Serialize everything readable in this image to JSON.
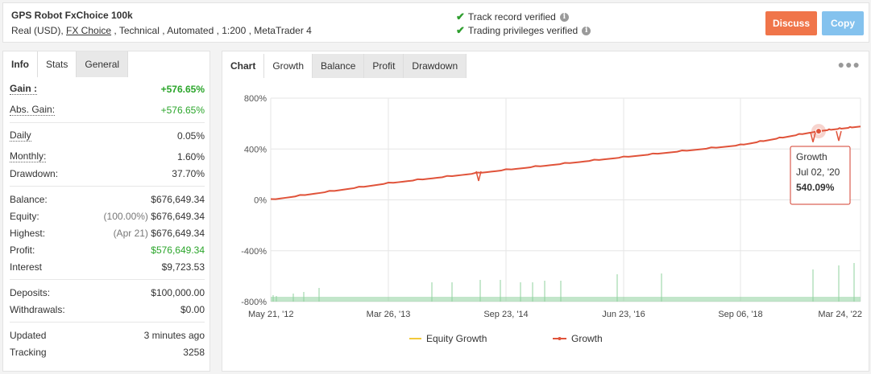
{
  "header": {
    "title": "GPS Robot FxChoice 100k",
    "sub_prefix": "Real (USD), ",
    "sub_broker": "FX Choice",
    "sub_suffix": " , Technical , Automated , 1:200 , MetaTrader 4",
    "verify_1": "Track record verified",
    "verify_2": "Trading privileges verified",
    "discuss_label": "Discuss",
    "copy_label": "Copy"
  },
  "left_tabs": [
    "Info",
    "Stats",
    "General"
  ],
  "stats": {
    "gain_label": "Gain :",
    "gain_value": "+576.65%",
    "abs_gain_label": "Abs. Gain:",
    "abs_gain_value": "+576.65%",
    "daily_label": "Daily",
    "daily_value": "0.05%",
    "monthly_label": "Monthly:",
    "monthly_value": "1.60%",
    "drawdown_label": "Drawdown:",
    "drawdown_value": "37.70%",
    "balance_label": "Balance:",
    "balance_value": "$676,649.34",
    "equity_label": "Equity:",
    "equity_note": "(100.00%)",
    "equity_value": "$676,649.34",
    "highest_label": "Highest:",
    "highest_note": "(Apr 21)",
    "highest_value": "$676,649.34",
    "profit_label": "Profit:",
    "profit_value": "$576,649.34",
    "interest_label": "Interest",
    "interest_value": "$9,723.53",
    "deposits_label": "Deposits:",
    "deposits_value": "$100,000.00",
    "withdrawals_label": "Withdrawals:",
    "withdrawals_value": "$0.00",
    "updated_label": "Updated",
    "updated_value": "3 minutes ago",
    "tracking_label": "Tracking",
    "tracking_value": "3258"
  },
  "chart_tabs": [
    "Chart",
    "Growth",
    "Balance",
    "Profit",
    "Drawdown"
  ],
  "colors": {
    "growth": "#e0533a",
    "equity": "#f2c93a",
    "bars": "#8fd19e",
    "green": "#2aa52a",
    "discuss": "#f0754a",
    "copy": "#84c2ee"
  },
  "chart_data": {
    "type": "line",
    "y_ticks": [
      "800%",
      "400%",
      "0%",
      "-400%",
      "-800%"
    ],
    "ylim": [
      -800,
      800
    ],
    "x_ticks": [
      "May 21, '12",
      "Mar 26, '13",
      "Sep 23, '14",
      "Jun 23, '16",
      "Sep 06, '18",
      "Mar 24, '22"
    ],
    "grid": true,
    "legend_position": "bottom",
    "series": [
      {
        "name": "Equity Growth",
        "values": []
      },
      {
        "name": "Growth",
        "x": [
          "May 21, '12",
          "Mar 26, '13",
          "Sep 23, '14",
          "Jun 23, '16",
          "Sep 06, '18",
          "Jul 02, '20",
          "Mar 24, '22"
        ],
        "values": [
          0,
          130,
          235,
          335,
          430,
          540,
          577
        ]
      }
    ],
    "tooltip": {
      "title": "Growth",
      "date": "Jul 02, '20",
      "value": "540.09%"
    }
  }
}
